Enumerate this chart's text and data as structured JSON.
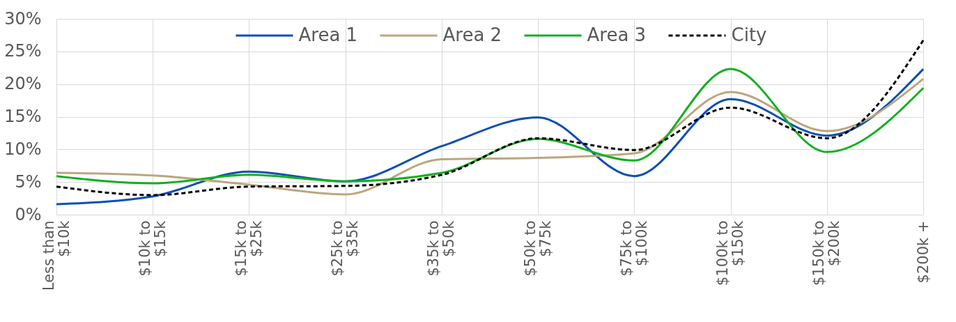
{
  "chart_data": {
    "type": "line",
    "categories": [
      "Less than $10k",
      "$10k to $15k",
      "$15k to $25k",
      "$25k to $35k",
      "$35k to $50k",
      "$50k to $75k",
      "$75k to $100k",
      "$100k to $150k",
      "$150k to $200k",
      "$200k +"
    ],
    "series": [
      {
        "name": "Area 1",
        "color": "#0a4fb5",
        "values": [
          1.6,
          2.8,
          6.6,
          5.1,
          10.5,
          14.9,
          5.9,
          17.7,
          12.1,
          22.3
        ]
      },
      {
        "name": "Area 2",
        "color": "#bba77f",
        "values": [
          6.4,
          6.0,
          4.6,
          3.1,
          8.5,
          8.7,
          9.4,
          18.8,
          12.8,
          20.8
        ]
      },
      {
        "name": "Area 3",
        "color": "#12b01e",
        "values": [
          5.9,
          4.8,
          6.1,
          5.1,
          6.4,
          11.6,
          8.3,
          22.3,
          9.6,
          19.4
        ]
      },
      {
        "name": "City",
        "color": "#000000",
        "line_style": "dashed",
        "values": [
          4.3,
          3.0,
          4.3,
          4.4,
          6.1,
          11.7,
          9.9,
          16.4,
          11.7,
          26.7
        ]
      }
    ],
    "ylim": [
      0,
      30
    ],
    "yticks": [
      {
        "value": 0,
        "label": "0%"
      },
      {
        "value": 5,
        "label": "5%"
      },
      {
        "value": 10,
        "label": "10%"
      },
      {
        "value": 15,
        "label": "15%"
      },
      {
        "value": 20,
        "label": "20%"
      },
      {
        "value": 25,
        "label": "25%"
      },
      {
        "value": 30,
        "label": "30%"
      }
    ],
    "grid": true,
    "legend": "top",
    "line_style": "solid",
    "marker": "none"
  }
}
